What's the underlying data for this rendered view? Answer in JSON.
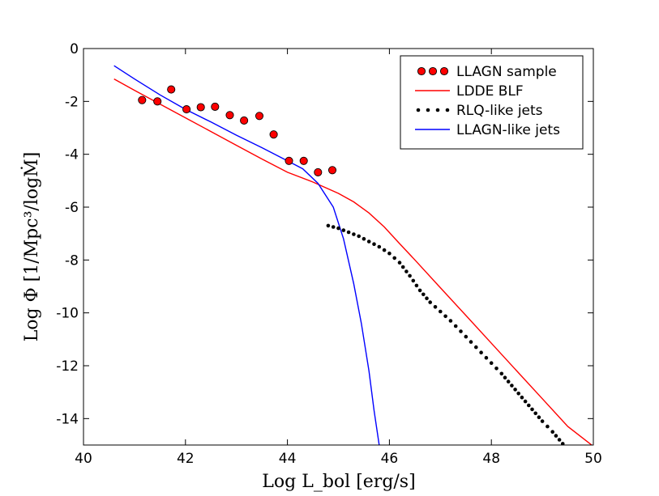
{
  "chart_data": {
    "type": "scatter",
    "xlabel": "Log L_bol [erg/s]",
    "ylabel": "Log Φ  [1/Mpc³/logṀ]",
    "xlim": [
      40,
      50
    ],
    "ylim": [
      -15,
      0
    ],
    "xticks": [
      40,
      42,
      44,
      46,
      48,
      50
    ],
    "yticks": [
      0,
      -2,
      -4,
      -6,
      -8,
      -10,
      -12,
      -14
    ],
    "legend_position": "top-right",
    "series": [
      {
        "name": "LLAGN sample",
        "kind": "markers",
        "color": "#ff0000",
        "x": [
          41.15,
          41.45,
          41.72,
          42.02,
          42.3,
          42.58,
          42.87,
          43.15,
          43.45,
          43.73,
          44.03,
          44.32,
          44.6,
          44.88
        ],
        "y": [
          -1.95,
          -2.0,
          -1.55,
          -2.3,
          -2.22,
          -2.2,
          -2.52,
          -2.72,
          -2.55,
          -3.25,
          -4.25,
          -4.25,
          -4.68,
          -4.6
        ]
      },
      {
        "name": "LDDE BLF",
        "kind": "line",
        "color": "#ff0000",
        "x": [
          40.6,
          41.0,
          41.5,
          42.0,
          42.5,
          43.0,
          43.5,
          44.0,
          44.5,
          45.0,
          45.3,
          45.6,
          45.9,
          46.2,
          46.5,
          47.0,
          47.5,
          48.0,
          48.5,
          49.0,
          49.5,
          50.0
        ],
        "y": [
          -1.15,
          -1.58,
          -2.1,
          -2.62,
          -3.14,
          -3.66,
          -4.18,
          -4.68,
          -5.05,
          -5.48,
          -5.8,
          -6.22,
          -6.75,
          -7.38,
          -8.0,
          -9.05,
          -10.1,
          -11.15,
          -12.2,
          -13.25,
          -14.3,
          -15.05
        ]
      },
      {
        "name": "RLQ-like jets",
        "kind": "dotted",
        "color": "#000000",
        "x": [
          44.8,
          45.0,
          45.2,
          45.4,
          45.6,
          45.8,
          46.0,
          46.2,
          46.4,
          46.6,
          46.8,
          47.0,
          47.2,
          47.4,
          47.6,
          47.8,
          48.0,
          48.2,
          48.4,
          48.6,
          48.8,
          49.0,
          49.2,
          49.4
        ],
        "y": [
          -6.7,
          -6.8,
          -6.95,
          -7.1,
          -7.3,
          -7.5,
          -7.75,
          -8.1,
          -8.6,
          -9.15,
          -9.6,
          -9.95,
          -10.3,
          -10.7,
          -11.1,
          -11.5,
          -11.9,
          -12.3,
          -12.75,
          -13.2,
          -13.65,
          -14.1,
          -14.5,
          -14.95
        ]
      },
      {
        "name": "LLAGN-like jets",
        "kind": "line",
        "color": "#0000ff",
        "x": [
          40.6,
          41.0,
          41.5,
          42.0,
          42.5,
          43.0,
          43.5,
          44.0,
          44.3,
          44.6,
          44.9,
          45.1,
          45.3,
          45.45,
          45.6,
          45.7,
          45.8
        ],
        "y": [
          -0.65,
          -1.15,
          -1.75,
          -2.3,
          -2.78,
          -3.28,
          -3.75,
          -4.25,
          -4.55,
          -5.1,
          -6.0,
          -7.2,
          -8.9,
          -10.4,
          -12.2,
          -13.7,
          -15.0
        ]
      }
    ]
  }
}
